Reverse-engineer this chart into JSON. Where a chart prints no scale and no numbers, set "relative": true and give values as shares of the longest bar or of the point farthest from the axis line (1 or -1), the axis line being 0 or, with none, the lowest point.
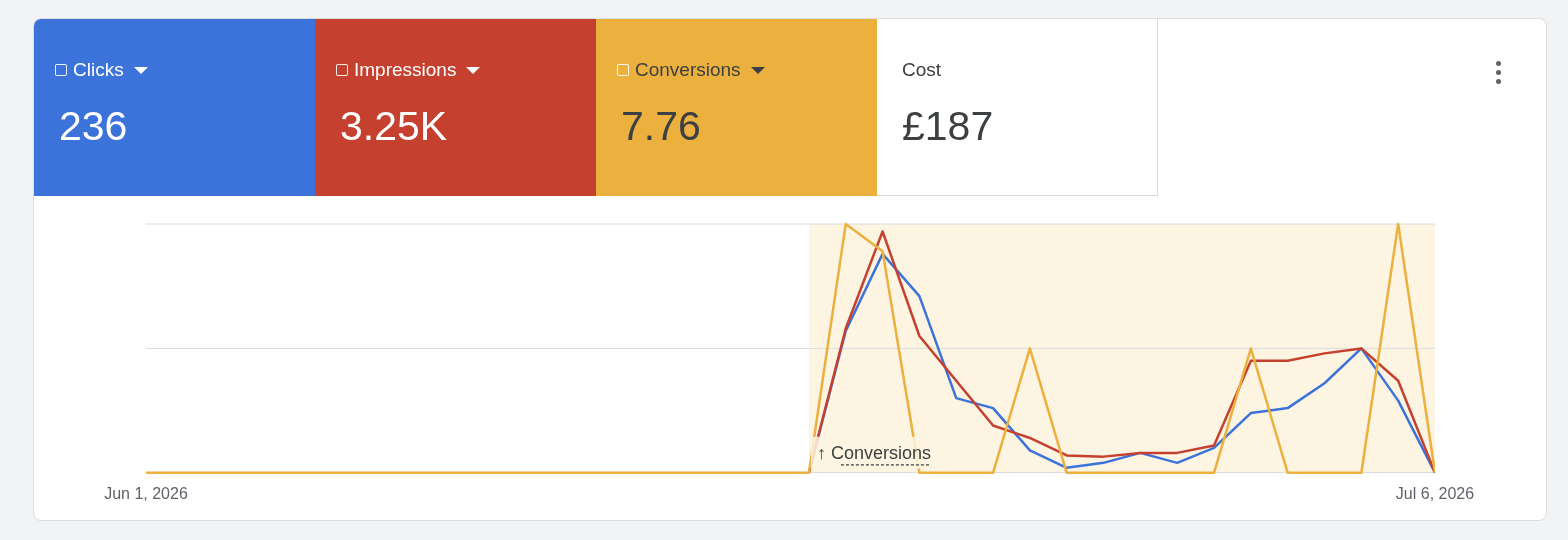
{
  "chart_data": {
    "type": "line",
    "relative": true,
    "x": [
      "2026-06-01",
      "2026-06-02",
      "2026-06-03",
      "2026-06-04",
      "2026-06-05",
      "2026-06-06",
      "2026-06-07",
      "2026-06-08",
      "2026-06-09",
      "2026-06-10",
      "2026-06-11",
      "2026-06-12",
      "2026-06-13",
      "2026-06-14",
      "2026-06-15",
      "2026-06-16",
      "2026-06-17",
      "2026-06-18",
      "2026-06-19",
      "2026-06-20",
      "2026-06-21",
      "2026-06-22",
      "2026-06-23",
      "2026-06-24",
      "2026-06-25",
      "2026-06-26",
      "2026-06-27",
      "2026-06-28",
      "2026-06-29",
      "2026-06-30",
      "2026-07-01",
      "2026-07-02",
      "2026-07-03",
      "2026-07-04",
      "2026-07-05",
      "2026-07-06"
    ],
    "xlim": [
      "2026-06-01",
      "2026-07-06"
    ],
    "xticks": [
      {
        "value": "2026-06-01",
        "label": "Jun 1, 2026"
      },
      {
        "value": "2026-07-06",
        "label": "Jul 6, 2026"
      }
    ],
    "series": [
      {
        "name": "Clicks",
        "color": "#3b73db",
        "values": [
          null,
          null,
          null,
          null,
          null,
          null,
          null,
          null,
          null,
          null,
          null,
          null,
          null,
          null,
          null,
          null,
          null,
          null,
          0,
          0.57,
          0.88,
          0.71,
          0.3,
          0.26,
          0.09,
          0.02,
          0.04,
          0.08,
          0.04,
          0.1,
          0.24,
          0.26,
          0.36,
          0.5,
          0.29,
          0
        ]
      },
      {
        "name": "Impressions",
        "color": "#c5402f",
        "values": [
          null,
          null,
          null,
          null,
          null,
          null,
          null,
          null,
          null,
          null,
          null,
          null,
          null,
          null,
          null,
          null,
          null,
          null,
          0,
          0.58,
          0.97,
          0.55,
          0.37,
          0.19,
          0.14,
          0.07,
          0.065,
          0.08,
          0.08,
          0.11,
          0.45,
          0.45,
          0.48,
          0.5,
          0.37,
          0
        ]
      },
      {
        "name": "Conversions",
        "color": "#ebb03e",
        "values": [
          0,
          0,
          0,
          0,
          0,
          0,
          0,
          0,
          0,
          0,
          0,
          0,
          0,
          0,
          0,
          0,
          0,
          0,
          0,
          1,
          0.89,
          0,
          0,
          0,
          0.5,
          0,
          0,
          0,
          0,
          0,
          0.5,
          0,
          0,
          0,
          1,
          0
        ]
      }
    ],
    "bands": [
      {
        "axis": "x",
        "from": "2026-06-19",
        "to": "2026-07-06",
        "label": "↑ Conversions",
        "color": "#fdf4e1"
      }
    ],
    "annotations": [
      "236",
      "3.25K",
      "7.76",
      "Cost",
      "£187"
    ],
    "ref_lines": [
      {
        "axis": "y",
        "value": 0.5,
        "color": "#dadce0"
      },
      {
        "axis": "y",
        "value": 1,
        "color": "#dadce0"
      }
    ],
    "legend": "top left",
    "marker": "none",
    "line_style": "solid"
  }
}
